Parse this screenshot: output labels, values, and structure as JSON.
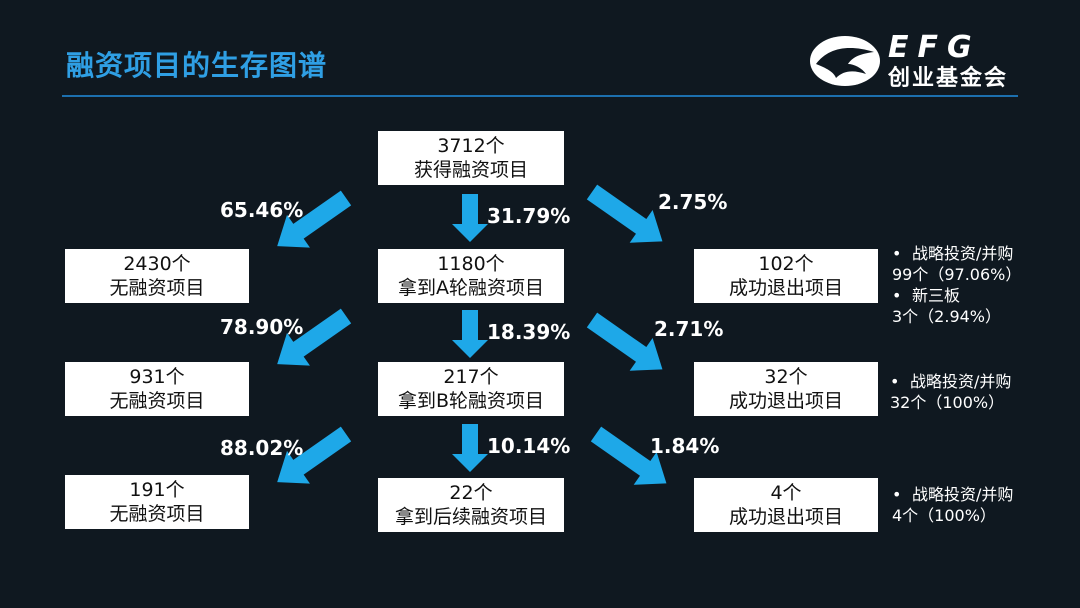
{
  "header": {
    "title": "融资项目的生存图谱",
    "logo_text_en": "EFG",
    "logo_text_cn": "创业基金会"
  },
  "colors": {
    "background": "#0f1820",
    "title": "#2f9fe4",
    "arrow": "#1ea8e8",
    "box": "#ffffff"
  },
  "top": {
    "line1": "3712个",
    "line2": "获得融资项目"
  },
  "rows": [
    {
      "left": {
        "line1": "2430个",
        "line2": "无融资项目"
      },
      "center": {
        "line1": "1180个",
        "line2": "拿到A轮融资项目"
      },
      "right": {
        "line1": "102个",
        "line2": "成功退出项目"
      },
      "pct_left": "65.46%",
      "pct_center": "31.79%",
      "pct_right": "2.75%",
      "notes": [
        {
          "bullet": "•",
          "label": "战略投资/并购",
          "detail": "99个（97.06%）"
        },
        {
          "bullet": "•",
          "label": "新三板",
          "detail": "3个（2.94%）"
        }
      ]
    },
    {
      "left": {
        "line1": "931个",
        "line2": "无融资项目"
      },
      "center": {
        "line1": "217个",
        "line2": "拿到B轮融资项目"
      },
      "right": {
        "line1": "32个",
        "line2": "成功退出项目"
      },
      "pct_left": "78.90%",
      "pct_center": "18.39%",
      "pct_right": "2.71%",
      "notes": [
        {
          "bullet": "•",
          "label": "战略投资/并购",
          "detail": "32个（100%）"
        }
      ]
    },
    {
      "left": {
        "line1": "191个",
        "line2": "无融资项目"
      },
      "center": {
        "line1": "22个",
        "line2": "拿到后续融资项目"
      },
      "right": {
        "line1": "4个",
        "line2": "成功退出项目"
      },
      "pct_left": "88.02%",
      "pct_center": "10.14%",
      "pct_right": "1.84%",
      "notes": [
        {
          "bullet": "•",
          "label": "战略投资/并购",
          "detail": "4个（100%）"
        }
      ]
    }
  ]
}
